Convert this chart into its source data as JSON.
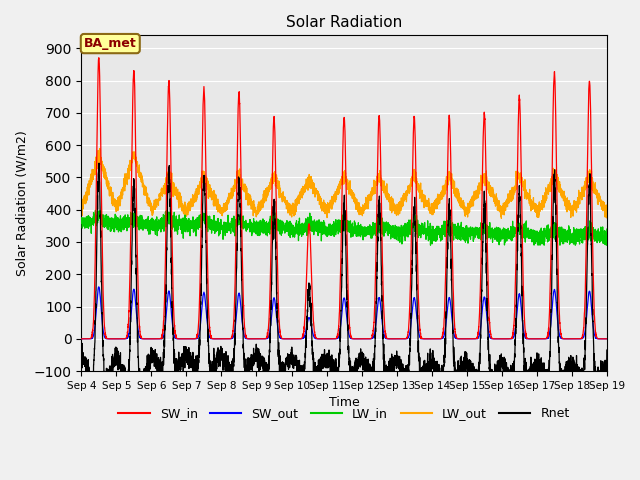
{
  "title": "Solar Radiation",
  "xlabel": "Time",
  "ylabel": "Solar Radiation (W/m2)",
  "xlim": [
    0,
    15
  ],
  "ylim": [
    -100,
    940
  ],
  "yticks": [
    -100,
    0,
    100,
    200,
    300,
    400,
    500,
    600,
    700,
    800,
    900
  ],
  "xtick_labels": [
    "Sep 4",
    "Sep 5",
    "Sep 6",
    "Sep 7",
    "Sep 8",
    "Sep 9",
    "Sep 10",
    "Sep 11",
    "Sep 12",
    "Sep 13",
    "Sep 14",
    "Sep 15",
    "Sep 16",
    "Sep 17",
    "Sep 18",
    "Sep 19"
  ],
  "series_colors": {
    "SW_in": "#ff0000",
    "SW_out": "#0000ff",
    "LW_in": "#00cc00",
    "LW_out": "#ffa500",
    "Rnet": "#000000"
  },
  "legend_label": "BA_met",
  "background_color": "#e8e8e8",
  "fig_background": "#f0f0f0",
  "grid_color": "#ffffff"
}
